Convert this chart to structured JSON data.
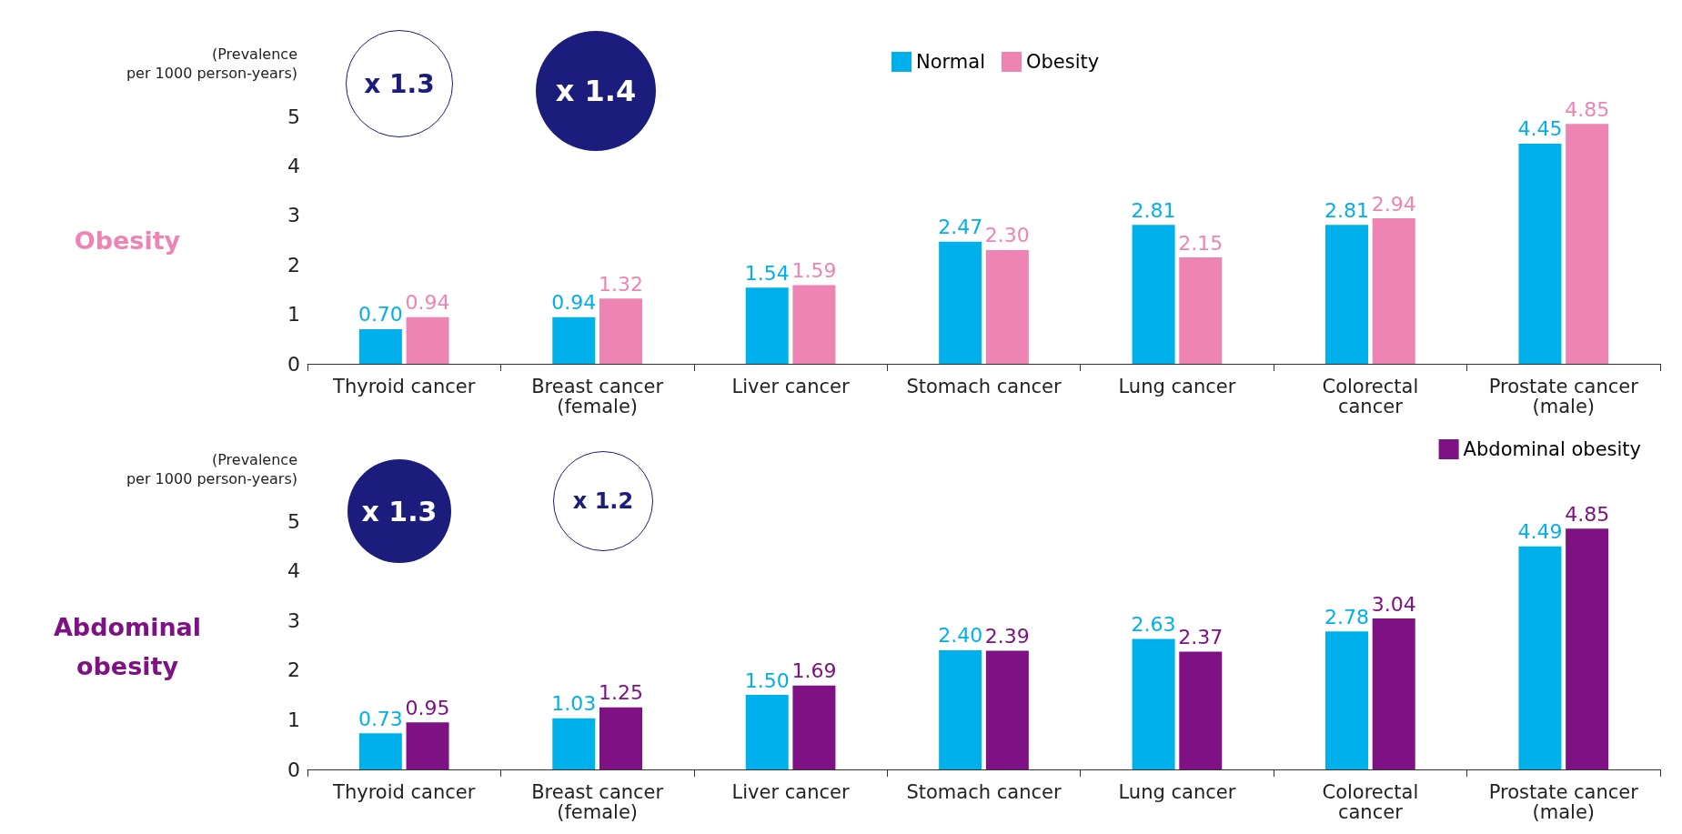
{
  "chart_data": [
    {
      "type": "bar",
      "ylabel": "(Prevalence\nper 1000 person-years)",
      "categories": [
        "Thyroid cancer",
        "Breast cancer\n(female)",
        "Liver cancer",
        "Stomach cancer",
        "Lung cancer",
        "Colorectal\ncancer",
        "Prostate cancer\n(male)"
      ],
      "series": [
        {
          "name": "Normal",
          "color": "#00b0eb",
          "values": [
            0.7,
            0.94,
            1.54,
            2.47,
            2.81,
            2.81,
            4.45
          ],
          "value_labels": [
            "0.70",
            "0.94",
            "1.54",
            "2.47",
            "2.81",
            "2.81",
            "4.45"
          ]
        },
        {
          "name": "Obesity",
          "color": "#ee84b3",
          "values": [
            0.94,
            1.32,
            1.59,
            2.3,
            2.15,
            2.94,
            4.85
          ],
          "value_labels": [
            "0.94",
            "1.32",
            "1.59",
            "2.30",
            "2.15",
            "2.94",
            "4.85"
          ]
        }
      ],
      "ylim": [
        0,
        5
      ],
      "yticks": [
        0,
        1,
        2,
        3,
        4,
        5
      ],
      "grid": false,
      "legend": "top",
      "annotations": [
        "Obesity",
        "x 1.3",
        "x 1.4"
      ]
    },
    {
      "type": "bar",
      "ylabel": "(Prevalence\nper 1000 person-years)",
      "categories": [
        "Thyroid cancer",
        "Breast cancer\n(female)",
        "Liver cancer",
        "Stomach cancer",
        "Lung cancer",
        "Colorectal\ncancer",
        "Prostate cancer\n(male)"
      ],
      "series": [
        {
          "color": "#00b0eb",
          "values": [
            0.73,
            1.03,
            1.5,
            2.4,
            2.63,
            2.78,
            4.49
          ],
          "value_labels": [
            "0.73",
            "1.03",
            "1.50",
            "2.40",
            "2.63",
            "2.78",
            "4.49"
          ]
        },
        {
          "name": "Abdominal obesity",
          "color": "#7e1183",
          "values": [
            0.95,
            1.25,
            1.69,
            2.39,
            2.37,
            3.04,
            4.85
          ],
          "value_labels": [
            "0.95",
            "1.25",
            "1.69",
            "2.39",
            "2.37",
            "3.04",
            "4.85"
          ]
        }
      ],
      "ylim": [
        0,
        5
      ],
      "yticks": [
        0,
        1,
        2,
        3,
        4,
        5
      ],
      "grid": false,
      "legend": "top right",
      "annotations": [
        "Abdominal\nobesity",
        "x 1.3",
        "x 1.2"
      ]
    }
  ]
}
